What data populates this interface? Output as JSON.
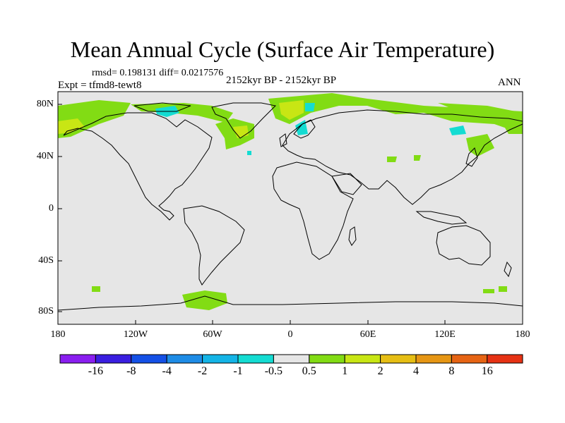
{
  "title": "Mean Annual Cycle (Surface Air Temperature)",
  "stats": "rmsd= 0.198131 diff= 0.0217576",
  "experiment": "Expt = tfmd8-tewt8",
  "period": "2152kyr BP - 2152kyr BP",
  "season": "ANN",
  "lat_labels": [
    "80N",
    "40N",
    "0",
    "40S",
    "80S"
  ],
  "lon_labels": [
    "180",
    "120W",
    "60W",
    "0",
    "60E",
    "120E",
    "180"
  ],
  "colorbar": {
    "labels": [
      "-16",
      "-8",
      "-4",
      "-2",
      "-1",
      "-0.5",
      "0.5",
      "1",
      "2",
      "4",
      "8",
      "16"
    ],
    "colors": [
      "#8a1ef0",
      "#3a1ee0",
      "#1450e6",
      "#1e8ce6",
      "#14b4e6",
      "#14dcd2",
      "#e6e6e6",
      "#82dc14",
      "#c8e614",
      "#e6be14",
      "#e69614",
      "#e66414",
      "#e63214"
    ]
  },
  "colors": {
    "land_ocean_bg": "#e6e6e6",
    "positive_small": "#82dc14",
    "positive_med": "#c8e614",
    "negative_small": "#14dcd2"
  }
}
